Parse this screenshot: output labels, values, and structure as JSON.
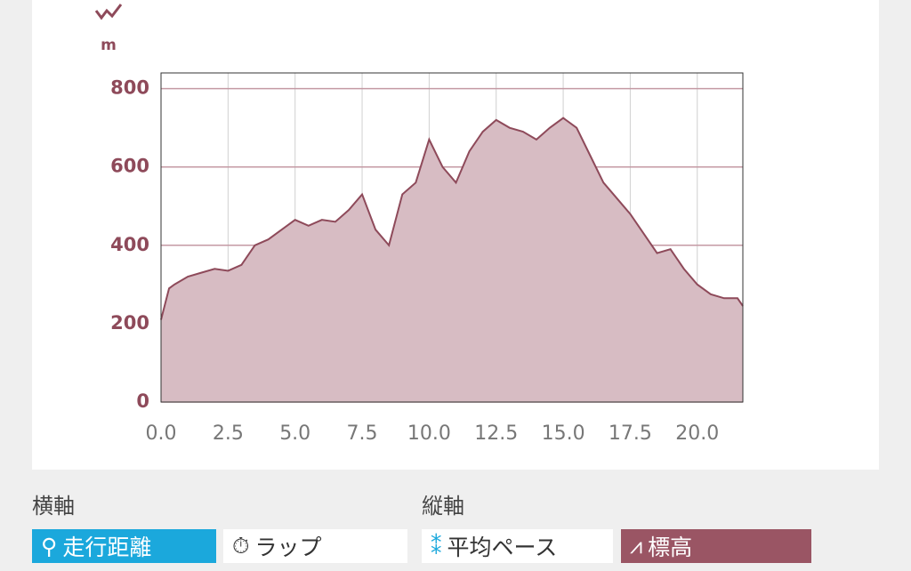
{
  "chart_data": {
    "type": "area",
    "y_unit": "m",
    "x": [
      0,
      0.3,
      0.5,
      1.0,
      1.5,
      2.0,
      2.5,
      3.0,
      3.5,
      4.0,
      4.5,
      5.0,
      5.5,
      6.0,
      6.5,
      7.0,
      7.5,
      8.0,
      8.5,
      9.0,
      9.5,
      10.0,
      10.5,
      11.0,
      11.5,
      12.0,
      12.5,
      13.0,
      13.5,
      14.0,
      14.5,
      15.0,
      15.5,
      16.0,
      16.5,
      17.0,
      17.5,
      18.0,
      18.5,
      19.0,
      19.5,
      20.0,
      20.5,
      21.0,
      21.5,
      21.7
    ],
    "series": [
      {
        "color": "#8e4a5a",
        "values": [
          210,
          290,
          300,
          320,
          330,
          340,
          335,
          350,
          400,
          415,
          440,
          465,
          450,
          465,
          460,
          490,
          530,
          440,
          400,
          530,
          560,
          670,
          600,
          560,
          640,
          690,
          720,
          700,
          690,
          670,
          700,
          725,
          700,
          630,
          560,
          520,
          480,
          430,
          380,
          390,
          340,
          300,
          275,
          265,
          265,
          245
        ]
      }
    ],
    "xlim": [
      0,
      21.7
    ],
    "ylim": [
      0,
      840
    ],
    "xticks": [
      {
        "value": 0,
        "label": "0.0"
      },
      2.5,
      {
        "value": 5,
        "label": "5.0"
      },
      7.5,
      {
        "value": 10,
        "label": "10.0"
      },
      12.5,
      {
        "value": 15,
        "label": "15.0"
      },
      17.5,
      {
        "value": 20,
        "label": "20.0"
      }
    ],
    "yticks": [
      0,
      200,
      400,
      600,
      800
    ],
    "grid": true
  },
  "controls": {
    "x_axis_label": "横軸",
    "y_axis_label": "縦軸",
    "x_buttons": [
      {
        "label": "走行距離",
        "selected": true
      },
      {
        "label": "ラップ",
        "selected": false
      }
    ],
    "y_buttons": [
      {
        "label": "平均ペース",
        "selected": false
      },
      {
        "label": "標高",
        "selected": true
      }
    ]
  }
}
